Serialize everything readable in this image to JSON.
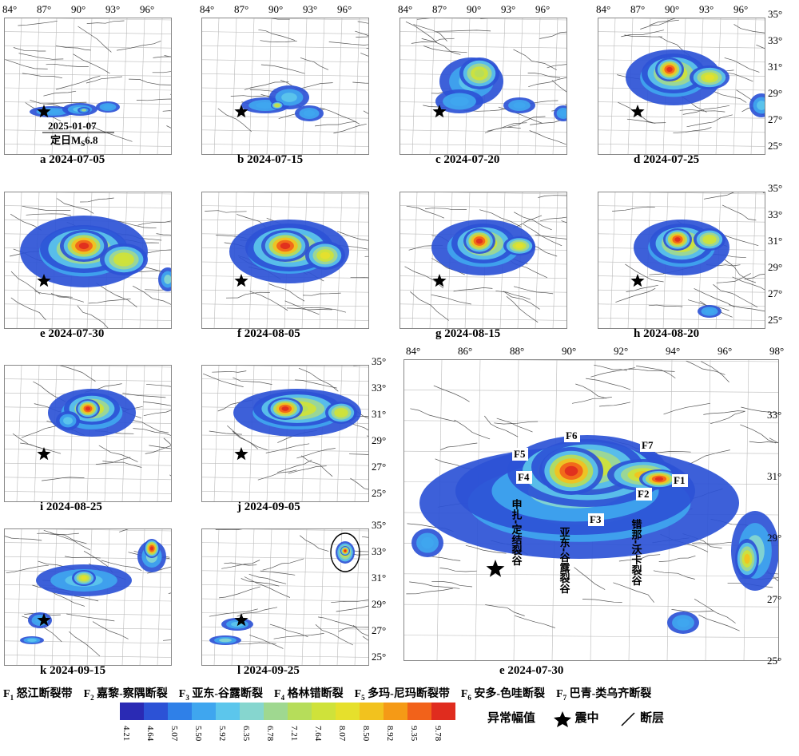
{
  "panels": [
    {
      "id": "a",
      "label": "a 2024-07-05",
      "lon_labels": [
        "84°",
        "87°",
        "90°",
        "93°",
        "96°"
      ],
      "lat_labels": []
    },
    {
      "id": "b",
      "label": "b 2024-07-15",
      "lon_labels": [
        "84°",
        "87°",
        "90°",
        "93°",
        "96°"
      ],
      "lat_labels": []
    },
    {
      "id": "c",
      "label": "c 2024-07-20",
      "lon_labels": [
        "84°",
        "87°",
        "90°",
        "93°",
        "96°"
      ],
      "lat_labels": []
    },
    {
      "id": "d",
      "label": "d 2024-07-25",
      "lon_labels": [
        "84°",
        "87°",
        "90°",
        "93°",
        "96°"
      ],
      "lat_labels": [
        "35°",
        "33°",
        "31°",
        "29°",
        "27°",
        "25°"
      ]
    },
    {
      "id": "e",
      "label": "e 2024-07-30",
      "lon_labels": [],
      "lat_labels": []
    },
    {
      "id": "f",
      "label": "f 2024-08-05",
      "lon_labels": [],
      "lat_labels": []
    },
    {
      "id": "g",
      "label": "g 2024-08-15",
      "lon_labels": [],
      "lat_labels": []
    },
    {
      "id": "h",
      "label": "h 2024-08-20",
      "lon_labels": [],
      "lat_labels": [
        "35°",
        "33°",
        "31°",
        "29°",
        "27°",
        "25°"
      ]
    },
    {
      "id": "i",
      "label": "i 2024-08-25",
      "lon_labels": [],
      "lat_labels": []
    },
    {
      "id": "j",
      "label": "j 2024-09-05",
      "lon_labels": [],
      "lat_labels": [
        "35°",
        "33°",
        "31°",
        "29°",
        "27°",
        "25°"
      ]
    },
    {
      "id": "k",
      "label": "k 2024-09-15",
      "lon_labels": [],
      "lat_labels": []
    },
    {
      "id": "l",
      "label": "l 2024-09-25",
      "lon_labels": [],
      "lat_labels": [
        "35°",
        "33°",
        "31°",
        "29°",
        "27°",
        "25°"
      ]
    }
  ],
  "big_panel": {
    "label": "e 2024-07-30",
    "lon_labels": [
      "84°",
      "86°",
      "88°",
      "90°",
      "92°",
      "94°",
      "96°",
      "98°"
    ],
    "lat_labels": [
      "33°",
      "31°",
      "29°",
      "27°",
      "25°"
    ],
    "fault_marks": [
      "F1",
      "F2",
      "F3",
      "F4",
      "F5",
      "F6",
      "F7"
    ],
    "rift_labels": [
      "申扎-定结裂谷",
      "亚东-谷露裂谷",
      "错那-沃卡裂谷"
    ]
  },
  "event_annotation": {
    "date": "2025-01-07",
    "text": "定日M",
    "subscript": "S",
    "magnitude": "6.8"
  },
  "fault_legend": [
    {
      "code": "F1",
      "name": "怒江断裂带"
    },
    {
      "code": "F2",
      "name": "嘉黎-察隅断裂"
    },
    {
      "code": "F3",
      "name": "亚东-谷露断裂"
    },
    {
      "code": "F4",
      "name": "格林错断裂"
    },
    {
      "code": "F5",
      "name": "多玛-尼玛断裂带"
    },
    {
      "code": "F6",
      "name": "安多-色哇断裂"
    },
    {
      "code": "F7",
      "name": "巴青-类乌齐断裂"
    }
  ],
  "colorbar": {
    "title": "异常幅值",
    "ticks": [
      "4.21",
      "4.64",
      "5.07",
      "5.50",
      "5.92",
      "6.35",
      "6.78",
      "7.21",
      "7.64",
      "8.07",
      "8.50",
      "8.92",
      "9.35",
      "9.78"
    ],
    "colors": [
      "#2a2ab4",
      "#2c52d6",
      "#2f80e8",
      "#3fa6ef",
      "#5cc6ec",
      "#86d6cf",
      "#9fd890",
      "#b6dd5a",
      "#cfe23a",
      "#e6e02c",
      "#f2c21e",
      "#f59a16",
      "#f2621a",
      "#e02c1e"
    ]
  },
  "legend_items": {
    "epicenter": "震中",
    "fault": "断层"
  }
}
